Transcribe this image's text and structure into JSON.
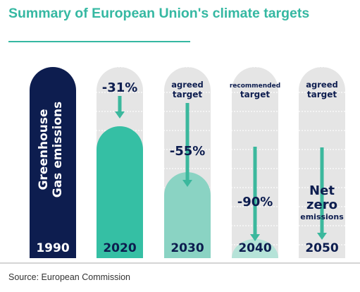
{
  "title": "Summary of European Union's climate targets",
  "source": "Source: European Commission",
  "colors": {
    "title": "#35b8a2",
    "base_bar": "#0d1d4f",
    "bar_2020": "#35bfa4",
    "bar_2030": "#8ad3c3",
    "bar_2040": "#b5e3d8",
    "track": "#e5e5e5",
    "arrow": "#3bb89d",
    "text_dark": "#0d1d4f",
    "text_light": "#ffffff"
  },
  "chart_data": {
    "type": "bar",
    "title": "Summary of European Union's climate targets",
    "categories": [
      "1990",
      "2020",
      "2030",
      "2040",
      "2050"
    ],
    "values": [
      100,
      69,
      45,
      10,
      0
    ],
    "series": [
      {
        "values": [
          100,
          69,
          45,
          10,
          0
        ]
      }
    ],
    "base_label": "Greenhouse Gas emissions",
    "reductions": [
      "",
      "-31%",
      "-55%",
      "-90%",
      "Net zero emissions"
    ],
    "status_labels": [
      "",
      "",
      "agreed target",
      "recommended target",
      "agreed target"
    ],
    "ylim": [
      0,
      100
    ],
    "grid": true,
    "legend": "none"
  }
}
